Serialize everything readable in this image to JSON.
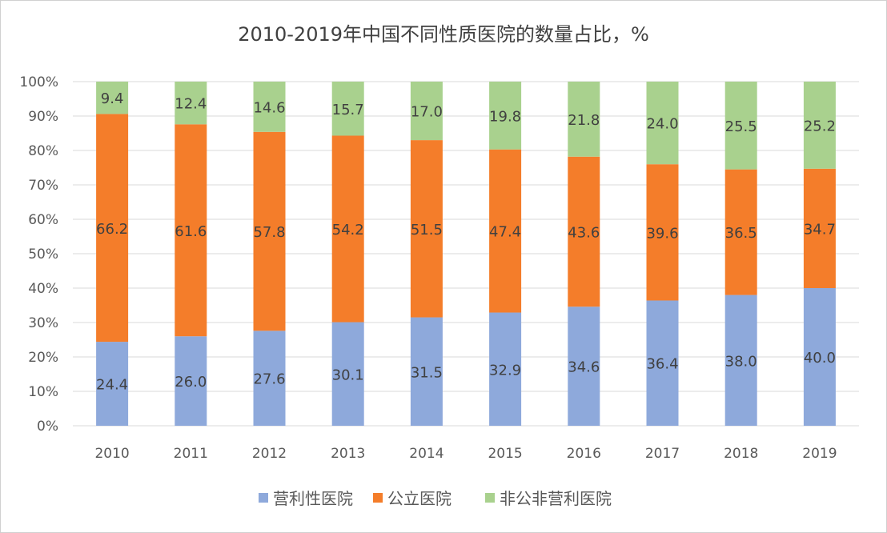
{
  "chart_data": {
    "type": "bar",
    "stacked": true,
    "title": "2010-2019年中国不同性质医院的数量占比，%",
    "xlabel": "",
    "ylabel": "",
    "ylim": [
      0,
      100
    ],
    "yticks": [
      "0%",
      "10%",
      "20%",
      "30%",
      "40%",
      "50%",
      "60%",
      "70%",
      "80%",
      "90%",
      "100%"
    ],
    "grid": true,
    "legend_position": "bottom",
    "categories": [
      "2010",
      "2011",
      "2012",
      "2013",
      "2014",
      "2015",
      "2016",
      "2017",
      "2018",
      "2019"
    ],
    "series": [
      {
        "name": "营利性医院",
        "color": "#8EA9DB",
        "values": [
          24.4,
          26.0,
          27.6,
          30.1,
          31.5,
          32.9,
          34.6,
          36.4,
          38.0,
          40.0
        ],
        "labels": [
          "24.4",
          "26.0",
          "27.6",
          "30.1",
          "31.5",
          "32.9",
          "34.6",
          "36.4",
          "38.0",
          "40.0"
        ]
      },
      {
        "name": "公立医院",
        "color": "#F47D2A",
        "values": [
          66.2,
          61.6,
          57.8,
          54.2,
          51.5,
          47.4,
          43.6,
          39.6,
          36.5,
          34.7
        ],
        "labels": [
          "66.2",
          "61.6",
          "57.8",
          "54.2",
          "51.5",
          "47.4",
          "43.6",
          "39.6",
          "36.5",
          "34.7"
        ]
      },
      {
        "name": "非公非营利医院",
        "color": "#A9D18E",
        "values": [
          9.4,
          12.4,
          14.6,
          15.7,
          17.0,
          19.8,
          21.8,
          24.0,
          25.5,
          25.2
        ],
        "labels": [
          "9.4",
          "12.4",
          "14.6",
          "15.7",
          "17.0",
          "19.8",
          "21.8",
          "24.0",
          "25.5",
          "25.2"
        ]
      }
    ]
  }
}
